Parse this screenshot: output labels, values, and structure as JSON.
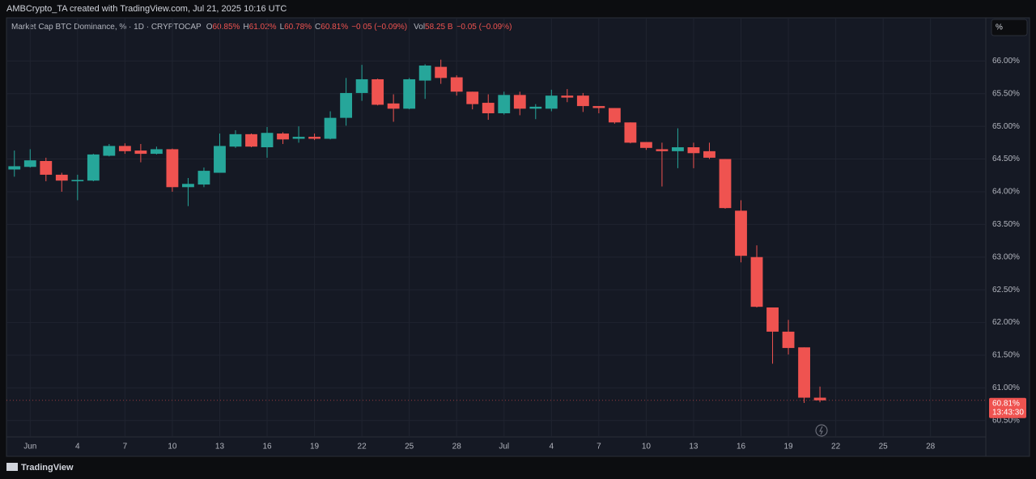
{
  "chart_data": {
    "type": "candlestick",
    "credit": "AMBCrypto_TA created with TradingView.com, Jul 21, 2025 10:16 UTC",
    "title": "Market Cap BTC Dominance, % · 1D · CRYPTOCAP",
    "ohlc_legend": [
      {
        "label": "O",
        "value": "60.85%"
      },
      {
        "label": "H",
        "value": "61.02%"
      },
      {
        "label": "L",
        "value": "60.78%"
      },
      {
        "label": "C",
        "value": "60.81%"
      }
    ],
    "change": "−0.05 (−0.09%)",
    "volume_label": "Vol",
    "volume": "58.25 B",
    "volume_change": "−0.05 (−0.09%)",
    "scale_button": "%",
    "price_label": "60.81%",
    "countdown": "13:43:30",
    "brand": "TradingView",
    "up_color": "#26a69a",
    "down_color": "#ef5350",
    "categories": [
      null,
      "Jun",
      null,
      null,
      "4",
      null,
      null,
      "7",
      null,
      null,
      "10",
      null,
      null,
      "13",
      null,
      null,
      "16",
      null,
      null,
      "19",
      null,
      null,
      "22",
      null,
      null,
      "25",
      null,
      null,
      "28",
      null,
      null,
      "Jul",
      null,
      null,
      "4",
      null,
      null,
      "7",
      null,
      null,
      "10",
      null,
      null,
      "13",
      null,
      null,
      "16",
      null,
      null,
      "19",
      null,
      null,
      "22",
      null,
      null,
      "25",
      null,
      null,
      "28",
      null,
      null,
      null
    ],
    "open": [
      64.34,
      64.38,
      64.47,
      64.26,
      64.16,
      64.17,
      64.55,
      64.7,
      64.63,
      64.58,
      64.65,
      64.07,
      64.11,
      64.29,
      64.69,
      64.88,
      64.68,
      64.89,
      64.81,
      64.84,
      64.81,
      65.13,
      65.51,
      65.72,
      65.35,
      65.27,
      65.7,
      65.91,
      65.75,
      65.53,
      65.36,
      65.2,
      65.48,
      65.27,
      65.27,
      65.47,
      65.47,
      65.31,
      65.28,
      65.06,
      64.76,
      64.65,
      64.62,
      64.68,
      64.62,
      64.5,
      63.71,
      63.0,
      62.23,
      61.86,
      61.62,
      60.85,
      null,
      null,
      null,
      null,
      null,
      null,
      null,
      null,
      null,
      null
    ],
    "high": [
      64.63,
      64.65,
      64.52,
      64.29,
      64.26,
      64.58,
      64.73,
      64.74,
      64.73,
      64.69,
      64.66,
      64.21,
      64.37,
      64.89,
      64.94,
      64.89,
      64.99,
      64.91,
      65.0,
      64.89,
      65.23,
      65.74,
      65.94,
      65.73,
      65.49,
      65.74,
      65.95,
      66.02,
      65.78,
      65.53,
      65.49,
      65.53,
      65.53,
      65.34,
      65.56,
      65.57,
      65.51,
      65.31,
      65.28,
      65.06,
      64.76,
      64.75,
      64.97,
      64.75,
      64.75,
      64.5,
      63.87,
      63.18,
      62.23,
      62.04,
      61.62,
      61.02,
      null,
      null,
      null,
      null,
      null,
      null,
      null,
      null,
      null,
      null
    ],
    "low": [
      64.23,
      64.37,
      64.16,
      64.0,
      63.87,
      64.16,
      64.54,
      64.58,
      64.45,
      64.57,
      64.0,
      63.78,
      64.07,
      64.29,
      64.67,
      64.68,
      64.52,
      64.73,
      64.75,
      64.79,
      64.8,
      65.01,
      65.39,
      65.32,
      65.07,
      65.26,
      65.42,
      65.65,
      65.47,
      65.26,
      65.1,
      65.18,
      65.17,
      65.11,
      65.23,
      65.37,
      65.22,
      65.2,
      65.04,
      64.74,
      64.64,
      64.08,
      64.36,
      64.36,
      64.5,
      63.74,
      62.92,
      62.23,
      61.37,
      61.51,
      60.77,
      60.78,
      null,
      null,
      null,
      null,
      null,
      null,
      null,
      null,
      null,
      null
    ],
    "close": [
      64.39,
      64.48,
      64.26,
      64.17,
      64.18,
      64.57,
      64.7,
      64.62,
      64.58,
      64.65,
      64.07,
      64.12,
      64.32,
      64.7,
      64.88,
      64.69,
      64.9,
      64.8,
      64.84,
      64.81,
      65.13,
      65.51,
      65.72,
      65.33,
      65.27,
      65.72,
      65.93,
      65.74,
      65.53,
      65.34,
      65.2,
      65.48,
      65.27,
      65.3,
      65.47,
      65.44,
      65.31,
      65.28,
      65.06,
      64.75,
      64.67,
      64.62,
      64.68,
      64.59,
      64.52,
      63.75,
      63.02,
      62.24,
      61.86,
      61.61,
      60.85,
      60.81,
      null,
      null,
      null,
      null,
      null,
      null,
      null,
      null,
      null,
      null
    ],
    "ylim": [
      60.25,
      66.66
    ],
    "yticks": [
      {
        "value": 60.5,
        "label": "60.50%"
      },
      {
        "value": 61,
        "label": "61.00%"
      },
      {
        "value": 61.5,
        "label": "61.50%"
      },
      {
        "value": 62,
        "label": "62.00%"
      },
      {
        "value": 62.5,
        "label": "62.50%"
      },
      {
        "value": 63,
        "label": "63.00%"
      },
      {
        "value": 63.5,
        "label": "63.50%"
      },
      {
        "value": 64,
        "label": "64.00%"
      },
      {
        "value": 64.5,
        "label": "64.50%"
      },
      {
        "value": 65,
        "label": "65.00%"
      },
      {
        "value": 65.5,
        "label": "65.50%"
      },
      {
        "value": 66,
        "label": "66.00%"
      }
    ],
    "grid": true
  }
}
